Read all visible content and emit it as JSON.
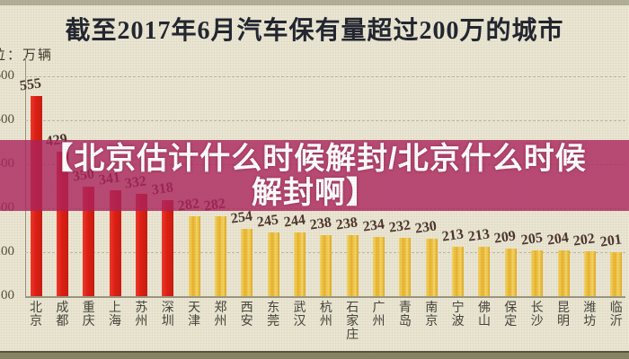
{
  "title": "截至2017年6月汽车保有量超过200万的城市",
  "unit_label": "位：万辆",
  "overlay": {
    "line1": "【北京估计什么时候解封/北京什么时候",
    "line2": "解封啊】",
    "full_text": "【北京估计什么时候解封/北京什么时候解封啊】",
    "color": "#ac205c",
    "text_color": "#ffffff"
  },
  "colors": {
    "background": "#eae6d3",
    "title_text": "#20242f",
    "red_bar": "#df1d12",
    "yellow_bar": "#e9b42a",
    "value_label": "#4b332c",
    "axis": "#9a9681"
  },
  "chart_data": {
    "type": "bar",
    "title": "截至2017年6月汽车保有量超过200万的城市",
    "unit": "万辆",
    "categories": [
      "北京",
      "成都",
      "重庆",
      "上海",
      "苏州",
      "深圳",
      "天津",
      "郑州",
      "西安",
      "东莞",
      "武汉",
      "杭州",
      "石家庄",
      "广州",
      "青岛",
      "南京",
      "宁波",
      "佛山",
      "保定",
      "长沙",
      "昆明",
      "潍坊",
      "临沂"
    ],
    "values": [
      555,
      429,
      350,
      341,
      332,
      318,
      282,
      282,
      254,
      245,
      244,
      238,
      238,
      234,
      232,
      230,
      213,
      213,
      209,
      205,
      204,
      202,
      201
    ],
    "red_bar_count": 6,
    "xlabel": "",
    "ylabel": "万辆",
    "ylim": [
      100,
      620
    ],
    "yticks": [
      100,
      200,
      300,
      400,
      500,
      600
    ],
    "grid": true,
    "legend": false
  }
}
